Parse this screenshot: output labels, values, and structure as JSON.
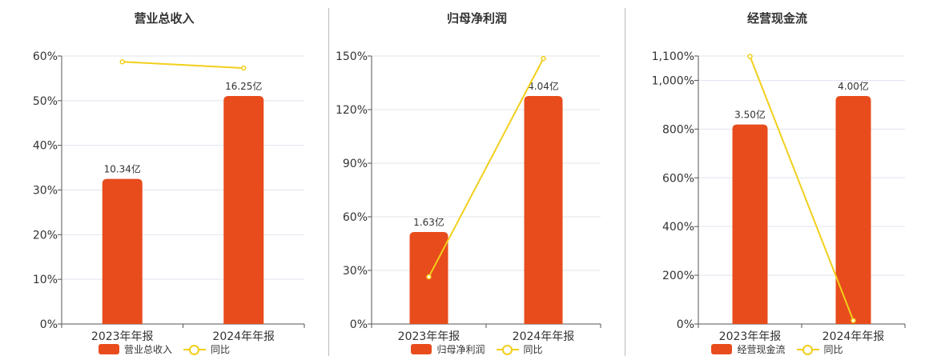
{
  "colors": {
    "bar": "#e84c1c",
    "line": "#f2cf1a",
    "grid": "#e1e4ee",
    "axis": "#555"
  },
  "chart_data": [
    {
      "type": "bar+line",
      "title": "营业总收入",
      "categories": [
        "2023年年报",
        "2024年年报"
      ],
      "bar_series": {
        "name": "营业总收入",
        "values": [
          10.34,
          16.25
        ],
        "labels": [
          "10.34亿",
          "16.25亿"
        ]
      },
      "line_series": {
        "name": "同比",
        "values": [
          58.7,
          57.3
        ]
      },
      "yticks": [
        "0%",
        "10%",
        "20%",
        "30%",
        "40%",
        "50%",
        "60%"
      ],
      "ylim": [
        0,
        60
      ],
      "ytick_values": [
        0,
        10,
        20,
        30,
        40,
        50,
        60
      ]
    },
    {
      "type": "bar+line",
      "title": "归母净利润",
      "categories": [
        "2023年年报",
        "2024年年报"
      ],
      "bar_series": {
        "name": "归母净利润",
        "values": [
          1.63,
          4.04
        ],
        "labels": [
          "1.63亿",
          "4.04亿"
        ]
      },
      "line_series": {
        "name": "同比",
        "values": [
          26.4,
          148.6
        ]
      },
      "yticks": [
        "0%",
        "30%",
        "60%",
        "90%",
        "120%",
        "150%"
      ],
      "ylim": [
        0,
        150
      ],
      "ytick_values": [
        0,
        30,
        60,
        90,
        120,
        150
      ]
    },
    {
      "type": "bar+line",
      "title": "经营现金流",
      "categories": [
        "2023年年报",
        "2024年年报"
      ],
      "bar_series": {
        "name": "经营现金流",
        "values": [
          3.5,
          4.0
        ],
        "labels": [
          "3.50亿",
          "4.00亿"
        ]
      },
      "line_series": {
        "name": "同比",
        "values": [
          1098,
          14
        ]
      },
      "yticks": [
        "0%",
        "200%",
        "400%",
        "600%",
        "800%",
        "1,000%",
        "1,100%"
      ],
      "ylim": [
        0,
        1100
      ],
      "ytick_values": [
        0,
        200,
        400,
        600,
        800,
        1000,
        1100
      ]
    }
  ]
}
